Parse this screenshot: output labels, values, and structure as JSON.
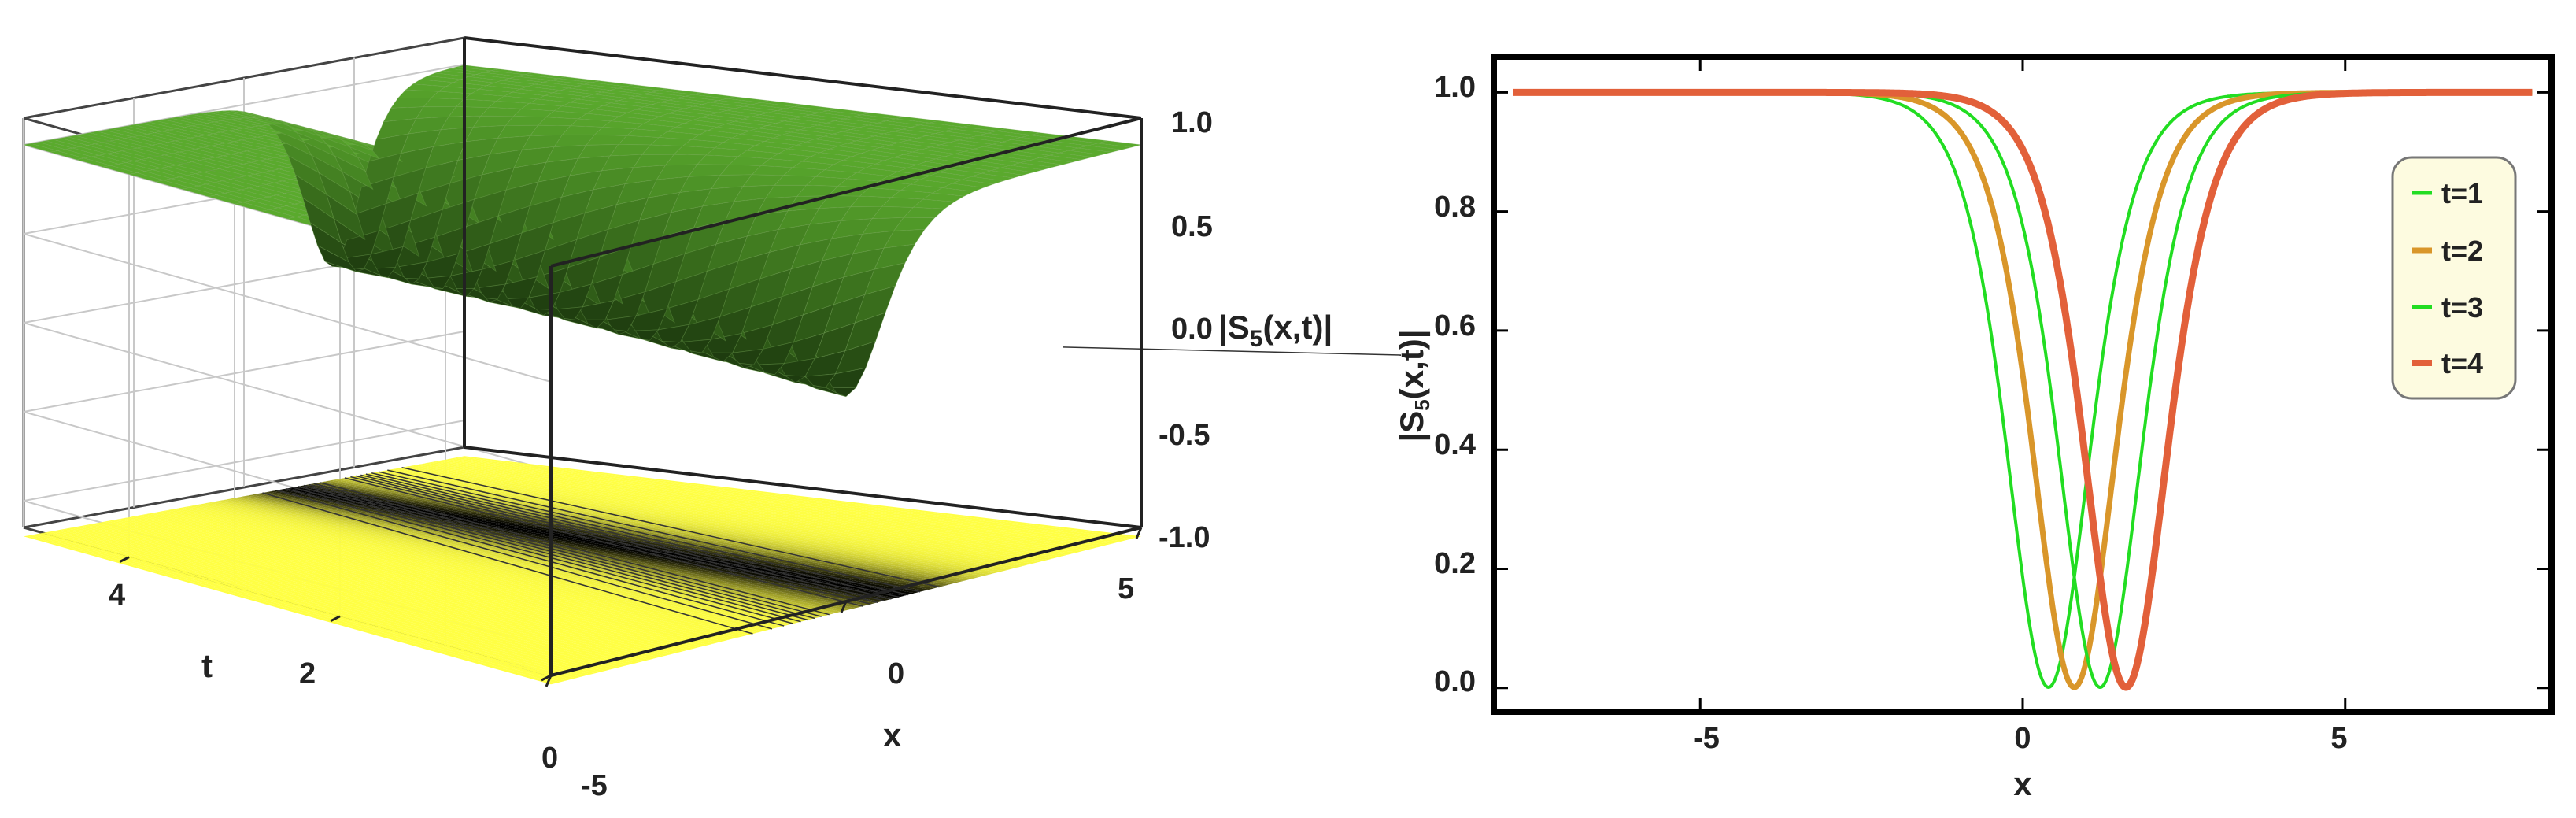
{
  "chart_data": [
    {
      "type": "surface3d",
      "title": "",
      "xlabel": "x",
      "ylabel": "t",
      "zlabel_main": "|S",
      "zlabel_sub": "5",
      "zlabel_tail": "(x,t)|",
      "xlim": [
        -5,
        5
      ],
      "ylim": [
        0,
        5
      ],
      "zlim": [
        -1.15,
        1.15
      ],
      "x_ticks": [
        "-5",
        "0",
        "5"
      ],
      "y_ticks": [
        "0",
        "2",
        "4"
      ],
      "z_ticks": [
        "1.0",
        "0.5",
        "0.0",
        "-0.5",
        "-1.0"
      ],
      "surface_color": "#4a9a28",
      "contour_color": "#ffff44",
      "function": "|S5(x,t)| = 1 - 0.999 sech^2(1.15 (x - 0.4 t))"
    },
    {
      "type": "line",
      "title": "",
      "xlabel": "x",
      "ylabel_main": "|S",
      "ylabel_sub": "5",
      "ylabel_tail": "(x,t)|",
      "xlim": [
        -8.2,
        8.2
      ],
      "ylim": [
        -0.04,
        1.06
      ],
      "x_ticks": [
        "-5",
        "0",
        "5"
      ],
      "y_ticks": [
        "0.0",
        "0.2",
        "0.4",
        "0.6",
        "0.8",
        "1.0"
      ],
      "legend_position": "right",
      "series": [
        {
          "name": "t=1",
          "color": "#22dd22",
          "center": 0.4,
          "width_param": 1.15
        },
        {
          "name": "t=2",
          "color": "#d9962a",
          "center": 0.8,
          "width_param": 1.15
        },
        {
          "name": "t=3",
          "color": "#22dd22",
          "center": 1.2,
          "width_param": 1.15
        },
        {
          "name": "t=4",
          "color": "#e2603a",
          "center": 1.6,
          "width_param": 1.15
        }
      ]
    }
  ]
}
